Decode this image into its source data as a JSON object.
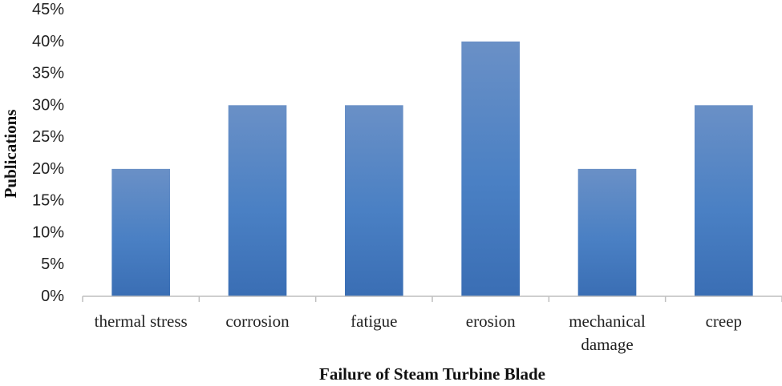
{
  "chart_data": {
    "type": "bar",
    "title": "",
    "xlabel": "Failure of Steam Turbine Blade",
    "ylabel": "Publications",
    "categories": [
      [
        "thermal stress"
      ],
      [
        "corrosion"
      ],
      [
        "fatigue"
      ],
      [
        "erosion"
      ],
      [
        "mechanical",
        "damage"
      ],
      [
        "creep"
      ]
    ],
    "values": [
      20,
      30,
      30,
      40,
      20,
      30
    ],
    "value_format": "percent",
    "ylim": [
      0,
      45
    ],
    "y_ticks": [
      "0%",
      "5%",
      "10%",
      "15%",
      "20%",
      "25%",
      "30%",
      "35%",
      "40%",
      "45%"
    ],
    "grid": false,
    "legend": "none",
    "bar_color_top": "#6a90c6",
    "bar_color_mid": "#4a80c4",
    "bar_color_bottom": "#3a6eb4",
    "axis_color": "#bfbfbf"
  }
}
